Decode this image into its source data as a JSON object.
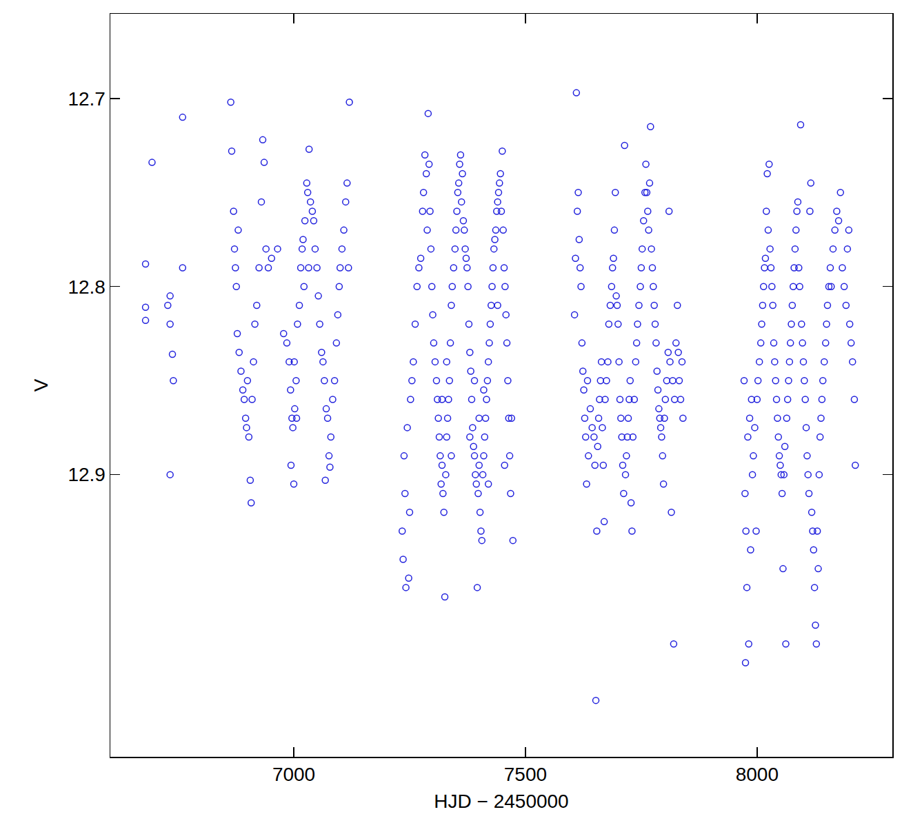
{
  "chart_data": {
    "type": "scatter",
    "x_label": "HJD − 2450000",
    "y_label": "V",
    "color": "#2222dd",
    "marker": "circle-open",
    "grid": false,
    "xlim": [
      6604,
      8292
    ],
    "ylim": [
      13.05,
      12.655
    ],
    "xticks": [
      7000,
      7500,
      8000
    ],
    "yticks": [
      12.7,
      12.8,
      12.9
    ],
    "x": [
      6680,
      6680,
      6680,
      6694,
      6728,
      6733,
      6733,
      6738,
      6740,
      6733,
      6760,
      6760,
      6864,
      6866,
      6870,
      6872,
      6874,
      6876,
      6878,
      6880,
      6882,
      6886,
      6890,
      6893,
      6896,
      6898,
      6900,
      6903,
      6906,
      6908,
      6910,
      6913,
      6916,
      6920,
      6925,
      6930,
      6933,
      6936,
      6940,
      6945,
      6952,
      6965,
      6978,
      6985,
      6990,
      6993,
      6994,
      6996,
      6998,
      7000,
      7001,
      7002,
      7005,
      7006,
      7008,
      7012,
      7015,
      7018,
      7020,
      7022,
      7024,
      7028,
      7030,
      7032,
      7033,
      7036,
      7040,
      7043,
      7046,
      7050,
      7053,
      7056,
      7060,
      7063,
      7066,
      7068,
      7070,
      7073,
      7076,
      7078,
      7080,
      7084,
      7088,
      7092,
      7095,
      7098,
      7100,
      7104,
      7108,
      7112,
      7115,
      7118,
      7120,
      7234,
      7236,
      7238,
      7240,
      7242,
      7245,
      7248,
      7250,
      7252,
      7255,
      7258,
      7262,
      7266,
      7270,
      7274,
      7278,
      7280,
      7283,
      7286,
      7288,
      7290,
      7292,
      7294,
      7296,
      7298,
      7300,
      7302,
      7305,
      7308,
      7310,
      7312,
      7314,
      7316,
      7318,
      7320,
      7322,
      7324,
      7326,
      7328,
      7330,
      7332,
      7334,
      7336,
      7338,
      7340,
      7342,
      7345,
      7348,
      7350,
      7352,
      7354,
      7356,
      7358,
      7360,
      7362,
      7364,
      7366,
      7368,
      7370,
      7372,
      7374,
      7376,
      7378,
      7380,
      7382,
      7384,
      7386,
      7388,
      7390,
      7392,
      7394,
      7396,
      7398,
      7400,
      7402,
      7404,
      7406,
      7408,
      7410,
      7412,
      7414,
      7416,
      7418,
      7420,
      7422,
      7424,
      7426,
      7428,
      7430,
      7432,
      7434,
      7436,
      7438,
      7440,
      7442,
      7444,
      7446,
      7448,
      7450,
      7452,
      7454,
      7456,
      7458,
      7460,
      7462,
      7464,
      7466,
      7468,
      7470,
      7473,
      7320,
      7330,
      7340,
      7380,
      7390,
      7400,
      7410,
      7420,
      7440,
      7455,
      7606,
      7608,
      7610,
      7612,
      7614,
      7616,
      7618,
      7620,
      7622,
      7624,
      7626,
      7628,
      7630,
      7632,
      7634,
      7636,
      7640,
      7644,
      7648,
      7650,
      7652,
      7654,
      7656,
      7658,
      7660,
      7662,
      7664,
      7666,
      7668,
      7670,
      7672,
      7675,
      7678,
      7680,
      7683,
      7686,
      7688,
      7690,
      7692,
      7694,
      7696,
      7698,
      7700,
      7702,
      7704,
      7706,
      7708,
      7710,
      7712,
      7714,
      7716,
      7718,
      7720,
      7722,
      7724,
      7726,
      7728,
      7730,
      7732,
      7735,
      7738,
      7740,
      7742,
      7745,
      7748,
      7750,
      7752,
      7755,
      7758,
      7760,
      7762,
      7764,
      7766,
      7768,
      7770,
      7772,
      7774,
      7776,
      7778,
      7780,
      7782,
      7784,
      7786,
      7788,
      7790,
      7792,
      7794,
      7796,
      7798,
      7800,
      7802,
      7805,
      7808,
      7810,
      7812,
      7815,
      7818,
      7820,
      7822,
      7825,
      7828,
      7830,
      7832,
      7835,
      7838,
      7840,
      7972,
      7974,
      7975,
      7976,
      7978,
      7980,
      7982,
      7984,
      7986,
      7988,
      7990,
      7992,
      7995,
      7998,
      8000,
      8002,
      8005,
      8008,
      8010,
      8012,
      8014,
      8016,
      8018,
      8020,
      8022,
      8024,
      8026,
      8028,
      8030,
      8032,
      8034,
      8036,
      8038,
      8040,
      8042,
      8044,
      8046,
      8048,
      8050,
      8052,
      8054,
      8056,
      8058,
      8060,
      8062,
      8064,
      8066,
      8068,
      8070,
      8072,
      8074,
      8076,
      8078,
      8080,
      8082,
      8084,
      8086,
      8088,
      8090,
      8092,
      8094,
      8096,
      8098,
      8100,
      8102,
      8104,
      8106,
      8108,
      8110,
      8112,
      8114,
      8116,
      8118,
      8120,
      8122,
      8124,
      8126,
      8128,
      8130,
      8132,
      8134,
      8136,
      8138,
      8140,
      8142,
      8145,
      8148,
      8150,
      8152,
      8155,
      8158,
      8160,
      8164,
      8168,
      8172,
      8176,
      8180,
      8184,
      8188,
      8192,
      8195,
      8198,
      8200,
      8203,
      8206,
      8210,
      8212
    ],
    "values": [
      12.788,
      12.811,
      12.818,
      12.734,
      12.81,
      12.805,
      12.82,
      12.836,
      12.85,
      12.9,
      12.71,
      12.79,
      12.702,
      12.728,
      12.76,
      12.78,
      12.79,
      12.8,
      12.825,
      12.77,
      12.835,
      12.845,
      12.855,
      12.86,
      12.87,
      12.875,
      12.85,
      12.88,
      12.903,
      12.915,
      12.86,
      12.84,
      12.82,
      12.81,
      12.79,
      12.755,
      12.722,
      12.734,
      12.78,
      12.79,
      12.785,
      12.78,
      12.825,
      12.83,
      12.84,
      12.855,
      12.895,
      12.87,
      12.875,
      12.905,
      12.84,
      12.865,
      12.85,
      12.87,
      12.82,
      12.81,
      12.79,
      12.78,
      12.775,
      12.8,
      12.765,
      12.745,
      12.75,
      12.79,
      12.727,
      12.755,
      12.76,
      12.765,
      12.78,
      12.79,
      12.805,
      12.82,
      12.835,
      12.84,
      12.85,
      12.903,
      12.865,
      12.87,
      12.89,
      12.896,
      12.88,
      12.86,
      12.85,
      12.83,
      12.815,
      12.8,
      12.79,
      12.78,
      12.77,
      12.755,
      12.745,
      12.79,
      12.702,
      12.93,
      12.945,
      12.89,
      12.91,
      12.96,
      12.875,
      12.955,
      12.92,
      12.86,
      12.85,
      12.84,
      12.82,
      12.8,
      12.79,
      12.785,
      12.76,
      12.75,
      12.73,
      12.74,
      12.77,
      12.708,
      12.735,
      12.76,
      12.78,
      12.8,
      12.815,
      12.83,
      12.84,
      12.85,
      12.86,
      12.87,
      12.88,
      12.89,
      12.905,
      12.895,
      12.91,
      12.92,
      12.965,
      12.9,
      12.88,
      12.87,
      12.86,
      12.85,
      12.83,
      12.81,
      12.8,
      12.79,
      12.78,
      12.77,
      12.76,
      12.75,
      12.745,
      12.735,
      12.73,
      12.755,
      12.74,
      12.765,
      12.77,
      12.78,
      12.785,
      12.79,
      12.8,
      12.82,
      12.835,
      12.845,
      12.86,
      12.875,
      12.885,
      12.89,
      12.9,
      12.905,
      12.96,
      12.91,
      12.895,
      12.92,
      12.93,
      12.935,
      12.9,
      12.89,
      12.88,
      12.87,
      12.86,
      12.85,
      12.84,
      12.83,
      12.82,
      12.81,
      12.8,
      12.79,
      12.78,
      12.775,
      12.77,
      12.76,
      12.755,
      12.75,
      12.745,
      12.74,
      12.76,
      12.728,
      12.77,
      12.79,
      12.8,
      12.815,
      12.83,
      12.85,
      12.87,
      12.89,
      12.91,
      12.87,
      12.935,
      12.86,
      12.84,
      12.89,
      12.88,
      12.85,
      12.87,
      12.855,
      12.905,
      12.81,
      12.895,
      12.815,
      12.785,
      12.697,
      12.76,
      12.75,
      12.775,
      12.79,
      12.8,
      12.83,
      12.845,
      12.855,
      12.87,
      12.88,
      12.905,
      12.85,
      12.89,
      12.865,
      12.875,
      12.88,
      12.895,
      13.02,
      12.93,
      12.885,
      12.87,
      12.86,
      12.85,
      12.84,
      12.875,
      12.895,
      12.925,
      12.86,
      12.85,
      12.84,
      12.82,
      12.81,
      12.8,
      12.79,
      12.785,
      12.77,
      12.75,
      12.805,
      12.81,
      12.82,
      12.84,
      12.86,
      12.87,
      12.88,
      12.895,
      12.91,
      12.725,
      12.9,
      12.89,
      12.88,
      12.87,
      12.86,
      12.85,
      12.915,
      12.93,
      12.88,
      12.86,
      12.84,
      12.83,
      12.82,
      12.81,
      12.8,
      12.79,
      12.78,
      12.765,
      12.75,
      12.735,
      12.75,
      12.76,
      12.77,
      12.745,
      12.715,
      12.78,
      12.79,
      12.8,
      12.81,
      12.82,
      12.83,
      12.845,
      12.855,
      12.865,
      12.87,
      12.875,
      12.88,
      12.89,
      12.905,
      12.87,
      12.86,
      12.85,
      12.835,
      12.76,
      12.84,
      12.92,
      12.85,
      12.99,
      12.86,
      12.83,
      12.81,
      12.835,
      12.85,
      12.86,
      12.84,
      12.87,
      12.85,
      12.91,
      13.0,
      12.93,
      12.96,
      12.88,
      12.99,
      12.87,
      12.94,
      12.86,
      12.9,
      12.89,
      12.875,
      12.93,
      12.86,
      12.85,
      12.84,
      12.83,
      12.82,
      12.81,
      12.8,
      12.79,
      12.785,
      12.76,
      12.74,
      12.77,
      12.735,
      12.78,
      12.79,
      12.8,
      12.81,
      12.83,
      12.84,
      12.85,
      12.86,
      12.87,
      12.88,
      12.89,
      12.895,
      12.9,
      12.91,
      12.95,
      12.9,
      12.885,
      12.99,
      12.87,
      12.86,
      12.85,
      12.84,
      12.83,
      12.82,
      12.81,
      12.8,
      12.79,
      12.78,
      12.77,
      12.76,
      12.755,
      12.79,
      12.8,
      12.714,
      12.82,
      12.83,
      12.84,
      12.85,
      12.86,
      12.875,
      12.89,
      12.9,
      12.91,
      12.76,
      12.745,
      12.92,
      12.93,
      12.94,
      12.96,
      12.98,
      12.99,
      12.93,
      12.95,
      12.9,
      12.88,
      12.87,
      12.86,
      12.85,
      12.84,
      12.83,
      12.82,
      12.81,
      12.8,
      12.79,
      12.8,
      12.78,
      12.77,
      12.76,
      12.765,
      12.75,
      12.79,
      12.8,
      12.81,
      12.78,
      12.77,
      12.82,
      12.83,
      12.84,
      12.86,
      12.895
    ]
  }
}
